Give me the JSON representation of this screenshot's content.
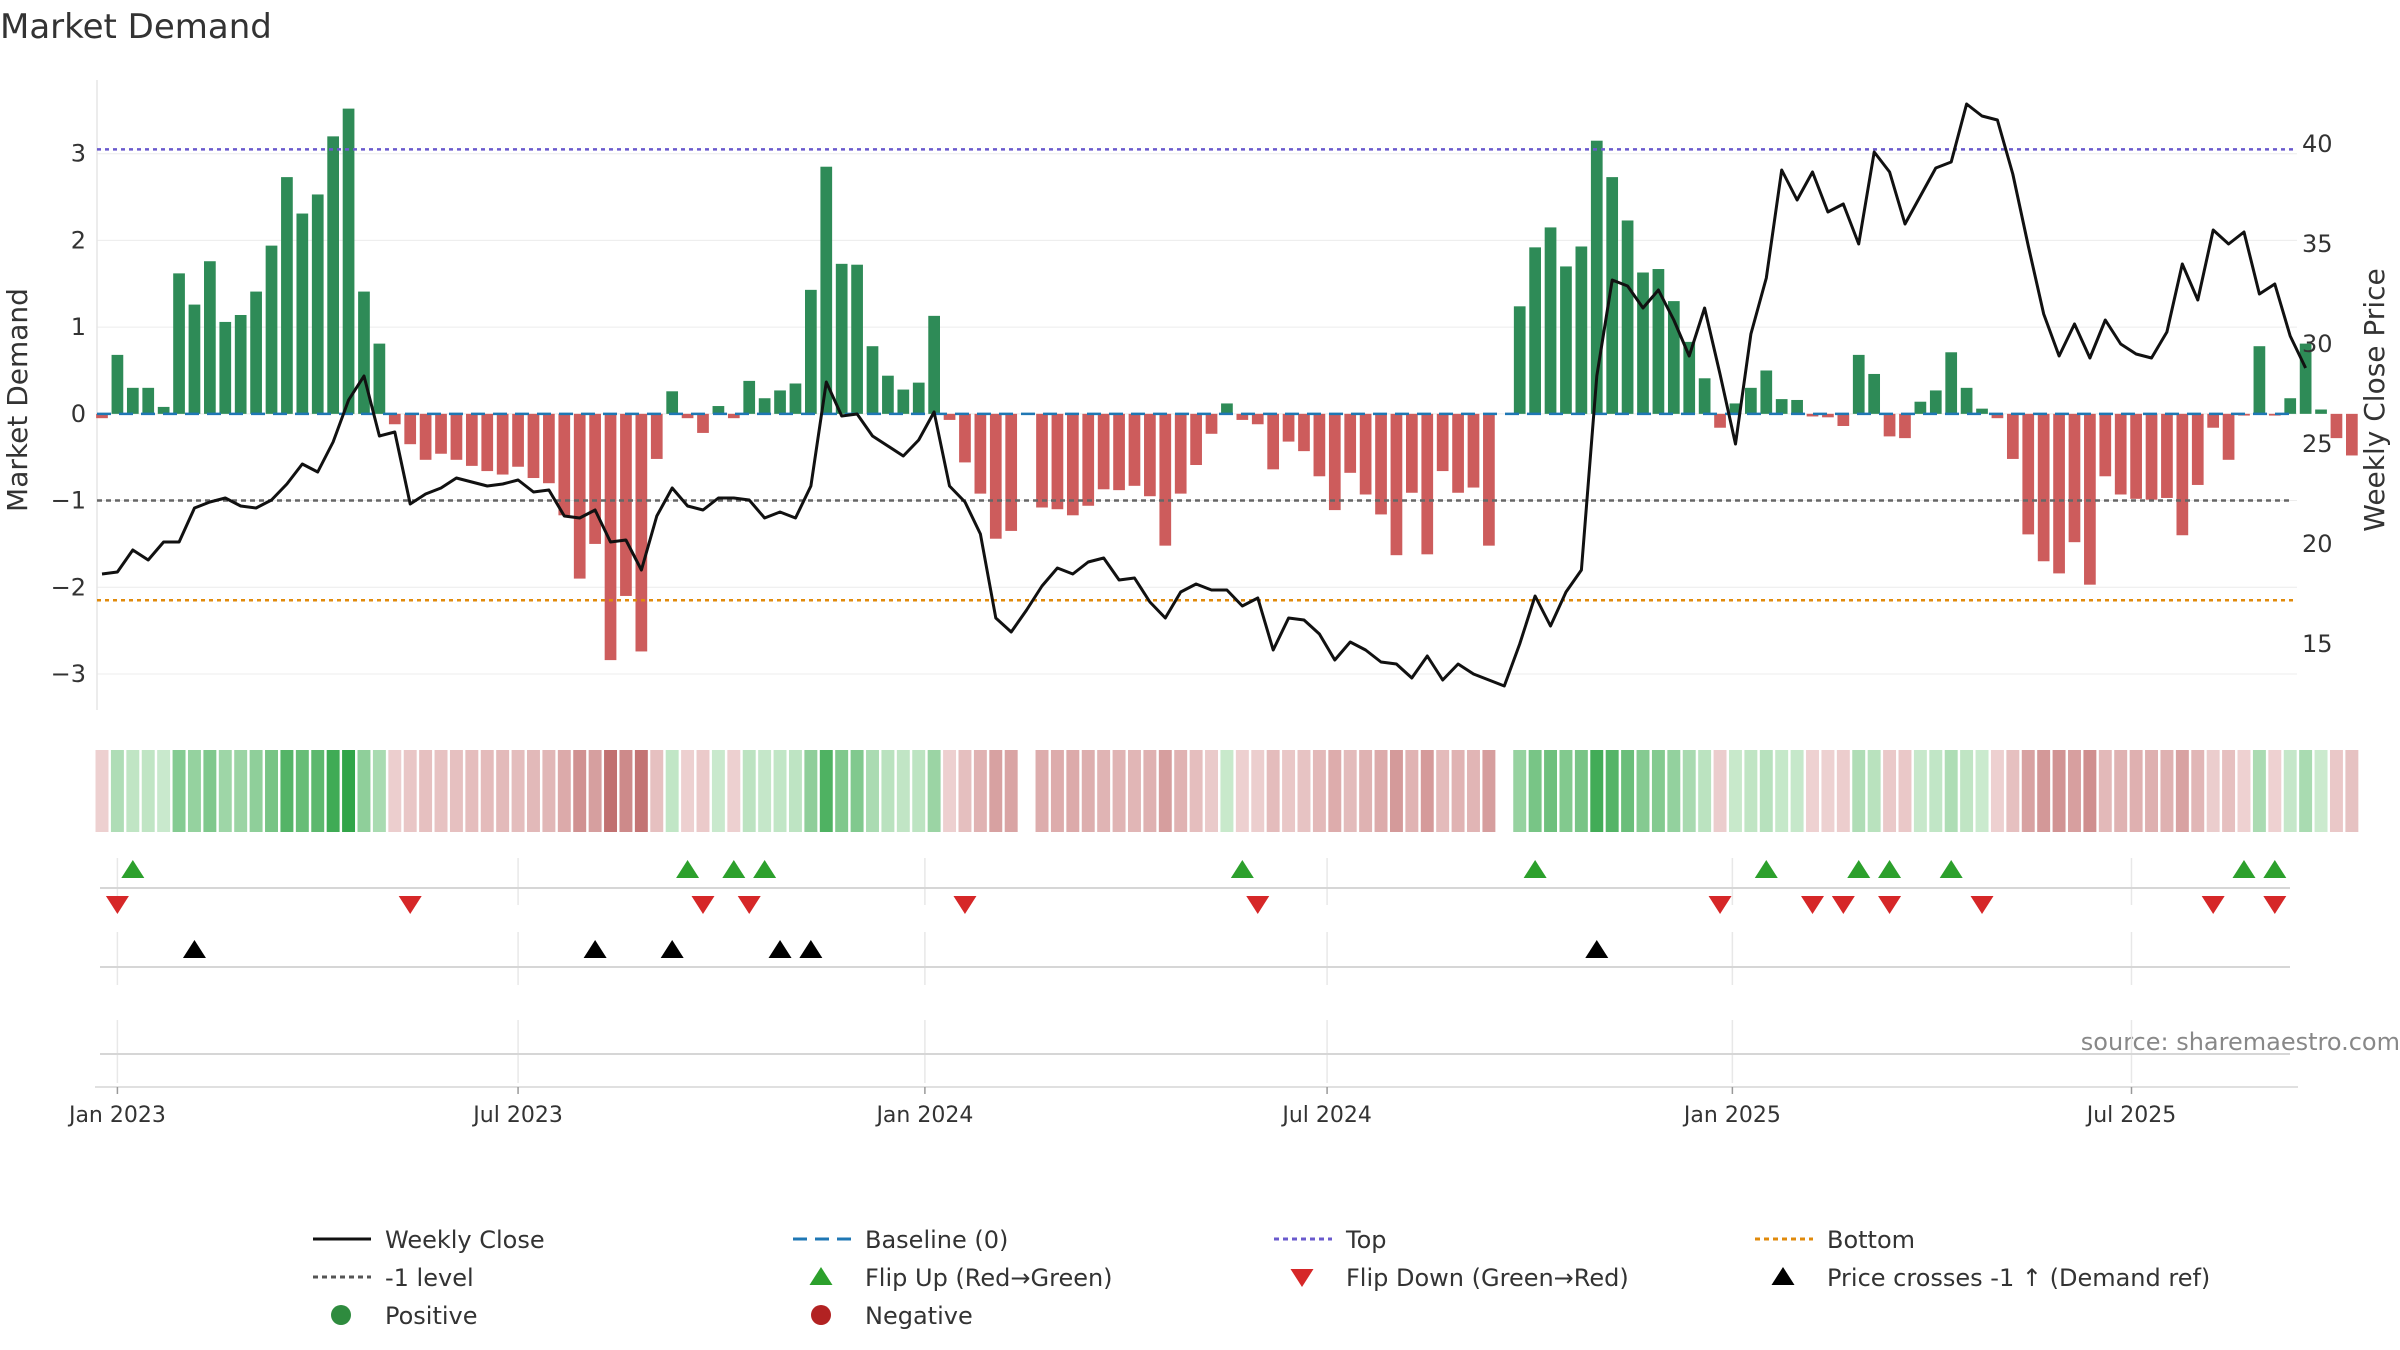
{
  "chart_data": {
    "type": "bar",
    "title": "Market Demand",
    "ylabel_left": "Market Demand",
    "ylabel_right": "Weekly Close Price",
    "left_ylim": [
      -3.3,
      3.85
    ],
    "right_ylim": [
      12.2,
      43.2
    ],
    "left_ticks": [
      3,
      2,
      1,
      0,
      -1,
      -2,
      -3
    ],
    "left_tick_labels": [
      "3",
      "2",
      "1",
      "0",
      "−1",
      "−2",
      "−3"
    ],
    "right_ticks": [
      40,
      35,
      30,
      25,
      20,
      15
    ],
    "right_tick_labels": [
      "40",
      "35",
      "30",
      "25",
      "20",
      "15"
    ],
    "x_ticks": [
      {
        "week": 1,
        "label": "Jan 2023"
      },
      {
        "week": 27,
        "label": "Jul 2023"
      },
      {
        "week": 53.4,
        "label": "Jan 2024"
      },
      {
        "week": 79.5,
        "label": "Jul 2024"
      },
      {
        "week": 105.8,
        "label": "Jan 2025"
      },
      {
        "week": 131.7,
        "label": "Jul 2025"
      }
    ],
    "weeks": 144,
    "demand": [
      -0.05,
      0.68,
      0.3,
      0.3,
      0.08,
      1.62,
      1.26,
      1.76,
      1.06,
      1.14,
      1.41,
      1.94,
      2.73,
      2.31,
      2.53,
      3.2,
      3.52,
      1.41,
      0.81,
      -0.12,
      -0.35,
      -0.53,
      -0.46,
      -0.53,
      -0.6,
      -0.66,
      -0.7,
      -0.61,
      -0.74,
      -0.8,
      -1.17,
      -1.9,
      -1.5,
      -2.84,
      -2.1,
      -2.74,
      -0.52,
      0.26,
      -0.05,
      -0.22,
      0.09,
      -0.05,
      0.38,
      0.18,
      0.27,
      0.35,
      1.43,
      2.85,
      1.73,
      1.72,
      0.78,
      0.44,
      0.28,
      0.36,
      1.13,
      -0.07,
      -0.56,
      -0.92,
      -1.44,
      -1.35,
      0.0,
      -1.08,
      -1.1,
      -1.17,
      -1.06,
      -0.87,
      -0.88,
      -0.83,
      -0.95,
      -1.52,
      -0.92,
      -0.59,
      -0.23,
      0.12,
      -0.07,
      -0.12,
      -0.64,
      -0.32,
      -0.43,
      -0.72,
      -1.11,
      -0.68,
      -0.93,
      -1.16,
      -1.63,
      -0.91,
      -1.62,
      -0.66,
      -0.91,
      -0.85,
      -1.52,
      0.0,
      1.24,
      1.92,
      2.15,
      1.7,
      1.93,
      3.15,
      2.73,
      2.23,
      1.63,
      1.67,
      1.3,
      0.83,
      0.41,
      -0.16,
      0.12,
      0.3,
      0.5,
      0.17,
      0.16,
      -0.03,
      -0.04,
      -0.14,
      0.68,
      0.46,
      -0.26,
      -0.28,
      0.14,
      0.27,
      0.71,
      0.3,
      0.06,
      -0.05,
      -0.52,
      -1.39,
      -1.7,
      -1.84,
      -1.48,
      -1.97,
      -0.72,
      -0.93,
      -0.98,
      -0.99,
      -0.97,
      -1.4,
      -0.82,
      -0.16,
      -0.53,
      -0.02,
      0.78,
      -0.02,
      0.18,
      0.81,
      0.05,
      -0.28,
      -0.48
    ],
    "close": [
      18.5,
      18.6,
      19.7,
      19.2,
      20.1,
      20.1,
      21.8,
      22.1,
      22.3,
      21.9,
      21.8,
      22.2,
      23.0,
      24.0,
      23.6,
      25.1,
      27.2,
      28.4,
      25.4,
      25.6,
      22.0,
      22.5,
      22.8,
      23.3,
      23.1,
      22.9,
      23.0,
      23.2,
      22.6,
      22.7,
      21.4,
      21.3,
      21.7,
      20.1,
      20.2,
      18.7,
      21.4,
      22.8,
      21.9,
      21.7,
      22.3,
      22.3,
      22.2,
      21.3,
      21.6,
      21.3,
      22.9,
      28.1,
      26.4,
      26.5,
      25.4,
      24.9,
      24.4,
      25.2,
      26.6,
      22.9,
      22.1,
      20.5,
      16.3,
      15.6,
      16.7,
      17.9,
      18.8,
      18.5,
      19.1,
      19.3,
      18.2,
      18.3,
      17.1,
      16.3,
      17.6,
      18.0,
      17.7,
      17.7,
      16.9,
      17.3,
      14.7,
      16.3,
      16.2,
      15.5,
      14.2,
      15.1,
      14.7,
      14.1,
      14.0,
      13.3,
      14.4,
      13.2,
      14.0,
      13.5,
      13.2,
      12.9,
      15.0,
      17.4,
      15.9,
      17.6,
      18.7,
      28.4,
      33.2,
      32.9,
      31.8,
      32.7,
      31.2,
      29.4,
      31.8,
      28.5,
      25.0,
      30.5,
      33.3,
      38.7,
      37.2,
      38.6,
      36.6,
      37.0,
      35.0,
      39.6,
      38.6,
      36.0,
      37.4,
      38.8,
      39.1,
      42.0,
      41.4,
      41.2,
      38.5,
      34.9,
      31.5,
      29.4,
      31.0,
      29.3,
      31.2,
      30.0,
      29.5,
      29.3,
      30.6,
      34.0,
      32.2,
      35.7,
      35.0,
      35.6,
      32.5,
      33.0,
      30.4,
      28.8
    ],
    "thresholds": {
      "top": 3.05,
      "bottom": -2.15,
      "minus_one": -1.0,
      "baseline": 0
    },
    "flip_up_weeks": [
      2,
      38,
      41,
      43,
      74,
      93,
      108,
      114,
      116,
      120,
      139,
      141
    ],
    "flip_down_weeks": [
      1,
      20,
      39,
      42,
      56,
      75,
      105,
      111,
      113,
      116,
      122,
      137,
      141
    ],
    "price_cross_weeks": [
      6,
      32,
      37,
      44,
      46,
      97
    ],
    "legend": [
      {
        "label": "Weekly Close",
        "style": "solid-line",
        "color": "#111111"
      },
      {
        "label": "Baseline (0)",
        "style": "dashed-line",
        "color": "#1f77b4"
      },
      {
        "label": "Top",
        "style": "dotted-line",
        "color": "#6a5acd"
      },
      {
        "label": "Bottom",
        "style": "dotted-line",
        "color": "#e08a0b"
      },
      {
        "label": "-1 level",
        "style": "dotted-line",
        "color": "#555555"
      },
      {
        "label": "Flip Up (Red→Green)",
        "style": "triangle-up",
        "color": "#2ca02c"
      },
      {
        "label": "Flip Down (Green→Red)",
        "style": "triangle-down",
        "color": "#d62728"
      },
      {
        "label": "Price crosses -1 ↑ (Demand ref)",
        "style": "triangle-up",
        "color": "#000000"
      },
      {
        "label": "Positive",
        "style": "circle",
        "color": "#2e8b3e"
      },
      {
        "label": "Negative",
        "style": "circle",
        "color": "#b22222"
      }
    ],
    "legend_placement": "bottom",
    "annotation": "source: sharemaestro.com"
  },
  "colors": {
    "positive": "#2e8b57",
    "negative": "#cd5c5c",
    "price": "#111111",
    "baseline": "#1f77b4",
    "top": "#6a5acd",
    "bottom": "#e08a0b",
    "minus_one": "#666666",
    "flip_up": "#2ca02c",
    "flip_down": "#d62728",
    "cross": "#000000"
  }
}
